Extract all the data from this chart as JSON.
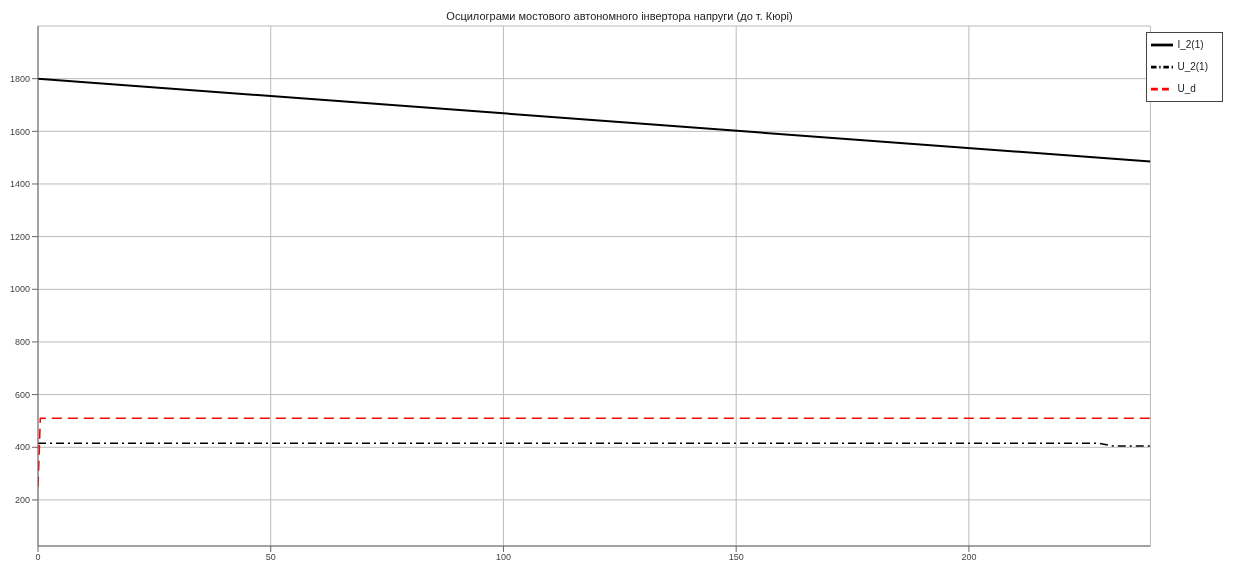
{
  "chart_data": {
    "type": "line",
    "title": "Осцилограми мостового автономного інвертора напруги (до т. Кюрі)",
    "xlim": [
      0,
      239
    ],
    "xticks": [
      0,
      50,
      100,
      150,
      200
    ],
    "ylim": [
      25,
      2000
    ],
    "yticks": [
      200,
      400,
      600,
      800,
      1000,
      1200,
      1400,
      1600,
      1800
    ],
    "grid": true,
    "legend": "top right",
    "marker": "none",
    "series": [
      {
        "name": "U_d",
        "color": "#ff0000",
        "line_style": "dashed",
        "x": [
          0,
          0.5,
          239
        ],
        "values": [
          250,
          510,
          510
        ]
      },
      {
        "name": "U_2(1)",
        "color": "#000000",
        "line_style": "dashdot",
        "x": [
          0,
          228,
          231,
          239
        ],
        "values": [
          415,
          415,
          405,
          405
        ]
      },
      {
        "name": "I_2(1)",
        "color": "#000000",
        "line_style": "solid",
        "x": [
          0,
          239
        ],
        "values": [
          1800,
          1485
        ]
      }
    ]
  }
}
